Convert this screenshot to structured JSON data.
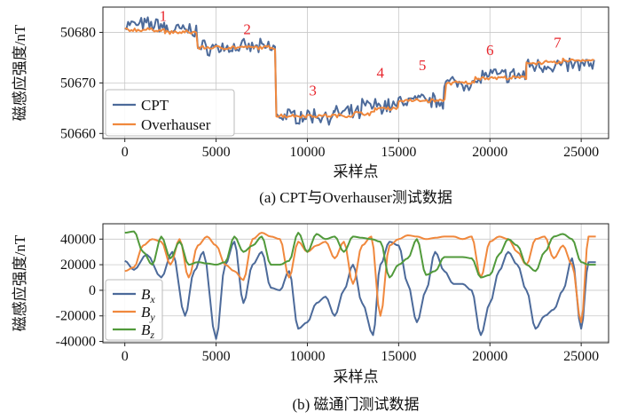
{
  "chart_data": [
    {
      "type": "line",
      "caption": "(a) CPT与Overhauser测试数据",
      "xlabel": "采样点",
      "ylabel": "磁感应强度/nT",
      "xlim": [
        -1200,
        26500
      ],
      "ylim": [
        50659,
        50685
      ],
      "xticks": [
        0,
        5000,
        10000,
        15000,
        20000,
        25000
      ],
      "yticks": [
        50660,
        50670,
        50680
      ],
      "grid": true,
      "legend": "bottom-left",
      "annotations": [
        "1",
        "2",
        "3",
        "4",
        "5",
        "6",
        "7"
      ],
      "annotation_points": [
        [
          2100,
          50682.3
        ],
        [
          6700,
          50679.6
        ],
        [
          10300,
          50667.5
        ],
        [
          14000,
          50671.0
        ],
        [
          16300,
          50672.5
        ],
        [
          20000,
          50675.5
        ],
        [
          23700,
          50677.0
        ]
      ],
      "series": [
        {
          "name": "CPT",
          "color": "#4c6a9a",
          "segments": [
            [
              0,
              2200,
              50681.5
            ],
            [
              2200,
              4000,
              50680.5
            ],
            [
              4000,
              8300,
              50677.0
            ],
            [
              8300,
              11500,
              50663.5
            ],
            [
              11500,
              13000,
              50664.0
            ],
            [
              13000,
              15000,
              50665.5
            ],
            [
              15000,
              17500,
              50666.5
            ],
            [
              17500,
              19500,
              50670.0
            ],
            [
              19500,
              22000,
              50671.5
            ],
            [
              22000,
              24000,
              50673.5
            ],
            [
              24000,
              25800,
              50673.5
            ]
          ],
          "noise": 1.2
        },
        {
          "name": "Overhauser",
          "color": "#f0883d",
          "segments": [
            [
              0,
              2200,
              50680.5
            ],
            [
              2200,
              4000,
              50680.0
            ],
            [
              4000,
              8300,
              50677.0
            ],
            [
              8300,
              12500,
              50663.5
            ],
            [
              12500,
              13700,
              50664.0
            ],
            [
              13700,
              15000,
              50665.0
            ],
            [
              15000,
              17600,
              50666.5
            ],
            [
              17600,
              19200,
              50670.0
            ],
            [
              19200,
              22000,
              50671.0
            ],
            [
              22000,
              24000,
              50674.0
            ],
            [
              24000,
              25800,
              50674.5
            ]
          ],
          "noise": 0.3
        }
      ]
    },
    {
      "type": "line",
      "caption": "(b) 磁通门测试数据",
      "xlabel": "采样点",
      "ylabel": "磁感应强度/nT",
      "xlim": [
        -1200,
        26500
      ],
      "ylim": [
        -41000,
        52000
      ],
      "xticks": [
        0,
        5000,
        10000,
        15000,
        20000,
        25000
      ],
      "yticks": [
        -40000,
        -20000,
        0,
        20000,
        40000
      ],
      "grid": true,
      "legend": "bottom-left",
      "series": [
        {
          "name": "Bx",
          "label_base": "B",
          "label_sub": "x",
          "color": "#4c6a9a",
          "breakpoints": [
            [
              0,
              23000
            ],
            [
              500,
              16000
            ],
            [
              1200,
              28000
            ],
            [
              2000,
              10000
            ],
            [
              2600,
              30000
            ],
            [
              3300,
              -20000
            ],
            [
              3800,
              15000
            ],
            [
              4300,
              30000
            ],
            [
              5000,
              -38000
            ],
            [
              5500,
              20000
            ],
            [
              6000,
              38000
            ],
            [
              6500,
              -10000
            ],
            [
              7000,
              20000
            ],
            [
              7500,
              30000
            ],
            [
              8000,
              2000
            ],
            [
              8500,
              0
            ],
            [
              9000,
              15000
            ],
            [
              9500,
              -30000
            ],
            [
              10000,
              -25000
            ],
            [
              10500,
              -10000
            ],
            [
              11000,
              -5000
            ],
            [
              11500,
              -20000
            ],
            [
              12000,
              0
            ],
            [
              12500,
              20000
            ],
            [
              13000,
              -10000
            ],
            [
              13600,
              -35000
            ],
            [
              14000,
              20000
            ],
            [
              14500,
              38000
            ],
            [
              15000,
              35000
            ],
            [
              15500,
              5000
            ],
            [
              16000,
              -25000
            ],
            [
              16500,
              0
            ],
            [
              17000,
              30000
            ],
            [
              17500,
              15000
            ],
            [
              18000,
              5000
            ],
            [
              18500,
              5000
            ],
            [
              19000,
              0
            ],
            [
              19500,
              -35000
            ],
            [
              20000,
              -10000
            ],
            [
              20500,
              15000
            ],
            [
              21000,
              30000
            ],
            [
              21500,
              20000
            ],
            [
              22000,
              0
            ],
            [
              22500,
              -30000
            ],
            [
              23000,
              -20000
            ],
            [
              23500,
              -15000
            ],
            [
              24000,
              0
            ],
            [
              24500,
              25000
            ],
            [
              25000,
              -30000
            ],
            [
              25400,
              22000
            ],
            [
              25800,
              22000
            ]
          ]
        },
        {
          "name": "By",
          "label_base": "B",
          "label_sub": "y",
          "color": "#f0883d",
          "breakpoints": [
            [
              0,
              15000
            ],
            [
              500,
              18000
            ],
            [
              1000,
              35000
            ],
            [
              1500,
              40000
            ],
            [
              2000,
              38000
            ],
            [
              2500,
              20000
            ],
            [
              3000,
              40000
            ],
            [
              3500,
              10000
            ],
            [
              4000,
              35000
            ],
            [
              4500,
              42000
            ],
            [
              5000,
              35000
            ],
            [
              5500,
              20000
            ],
            [
              6000,
              15000
            ],
            [
              6500,
              8000
            ],
            [
              7000,
              40000
            ],
            [
              7500,
              45000
            ],
            [
              8000,
              42000
            ],
            [
              8500,
              40000
            ],
            [
              9000,
              10000
            ],
            [
              9500,
              38000
            ],
            [
              10000,
              30000
            ],
            [
              10500,
              35000
            ],
            [
              11000,
              38000
            ],
            [
              11500,
              25000
            ],
            [
              12000,
              38000
            ],
            [
              12500,
              5000
            ],
            [
              13000,
              35000
            ],
            [
              13500,
              42000
            ],
            [
              14000,
              -20000
            ],
            [
              14500,
              35000
            ],
            [
              15000,
              40000
            ],
            [
              15500,
              43000
            ],
            [
              16000,
              42000
            ],
            [
              16500,
              40000
            ],
            [
              17000,
              41000
            ],
            [
              17500,
              42000
            ],
            [
              18000,
              42000
            ],
            [
              18500,
              40000
            ],
            [
              19000,
              42000
            ],
            [
              19500,
              10000
            ],
            [
              20000,
              38000
            ],
            [
              20500,
              42000
            ],
            [
              21000,
              40000
            ],
            [
              21500,
              30000
            ],
            [
              22000,
              20000
            ],
            [
              22500,
              40000
            ],
            [
              23000,
              42000
            ],
            [
              23500,
              25000
            ],
            [
              24000,
              35000
            ],
            [
              24500,
              20000
            ],
            [
              25000,
              -25000
            ],
            [
              25400,
              42000
            ],
            [
              25800,
              42000
            ]
          ]
        },
        {
          "name": "Bz",
          "label_base": "B",
          "label_sub": "z",
          "color": "#519a3b",
          "breakpoints": [
            [
              0,
              45000
            ],
            [
              500,
              46000
            ],
            [
              1000,
              30000
            ],
            [
              1500,
              20000
            ],
            [
              2000,
              42000
            ],
            [
              2500,
              25000
            ],
            [
              3000,
              38000
            ],
            [
              3500,
              20000
            ],
            [
              4000,
              22000
            ],
            [
              4500,
              21000
            ],
            [
              5000,
              20000
            ],
            [
              5500,
              22000
            ],
            [
              6000,
              42000
            ],
            [
              6500,
              30000
            ],
            [
              7000,
              35000
            ],
            [
              7500,
              42000
            ],
            [
              8000,
              20000
            ],
            [
              8500,
              20000
            ],
            [
              9000,
              23000
            ],
            [
              9500,
              45000
            ],
            [
              10000,
              30000
            ],
            [
              10500,
              44000
            ],
            [
              11000,
              40000
            ],
            [
              11500,
              42000
            ],
            [
              12000,
              30000
            ],
            [
              12500,
              42000
            ],
            [
              13000,
              41000
            ],
            [
              13500,
              40000
            ],
            [
              14000,
              38000
            ],
            [
              14500,
              10000
            ],
            [
              15000,
              20000
            ],
            [
              15500,
              25000
            ],
            [
              16000,
              40000
            ],
            [
              16500,
              12000
            ],
            [
              17000,
              15000
            ],
            [
              17500,
              26000
            ],
            [
              18000,
              26000
            ],
            [
              18500,
              26000
            ],
            [
              19000,
              25000
            ],
            [
              19500,
              10000
            ],
            [
              20000,
              12000
            ],
            [
              20500,
              28000
            ],
            [
              21000,
              40000
            ],
            [
              21500,
              35000
            ],
            [
              22000,
              20000
            ],
            [
              22500,
              15000
            ],
            [
              23000,
              30000
            ],
            [
              23500,
              42000
            ],
            [
              24000,
              44000
            ],
            [
              24500,
              40000
            ],
            [
              25000,
              22000
            ],
            [
              25400,
              20000
            ],
            [
              25800,
              20000
            ]
          ]
        }
      ]
    }
  ]
}
